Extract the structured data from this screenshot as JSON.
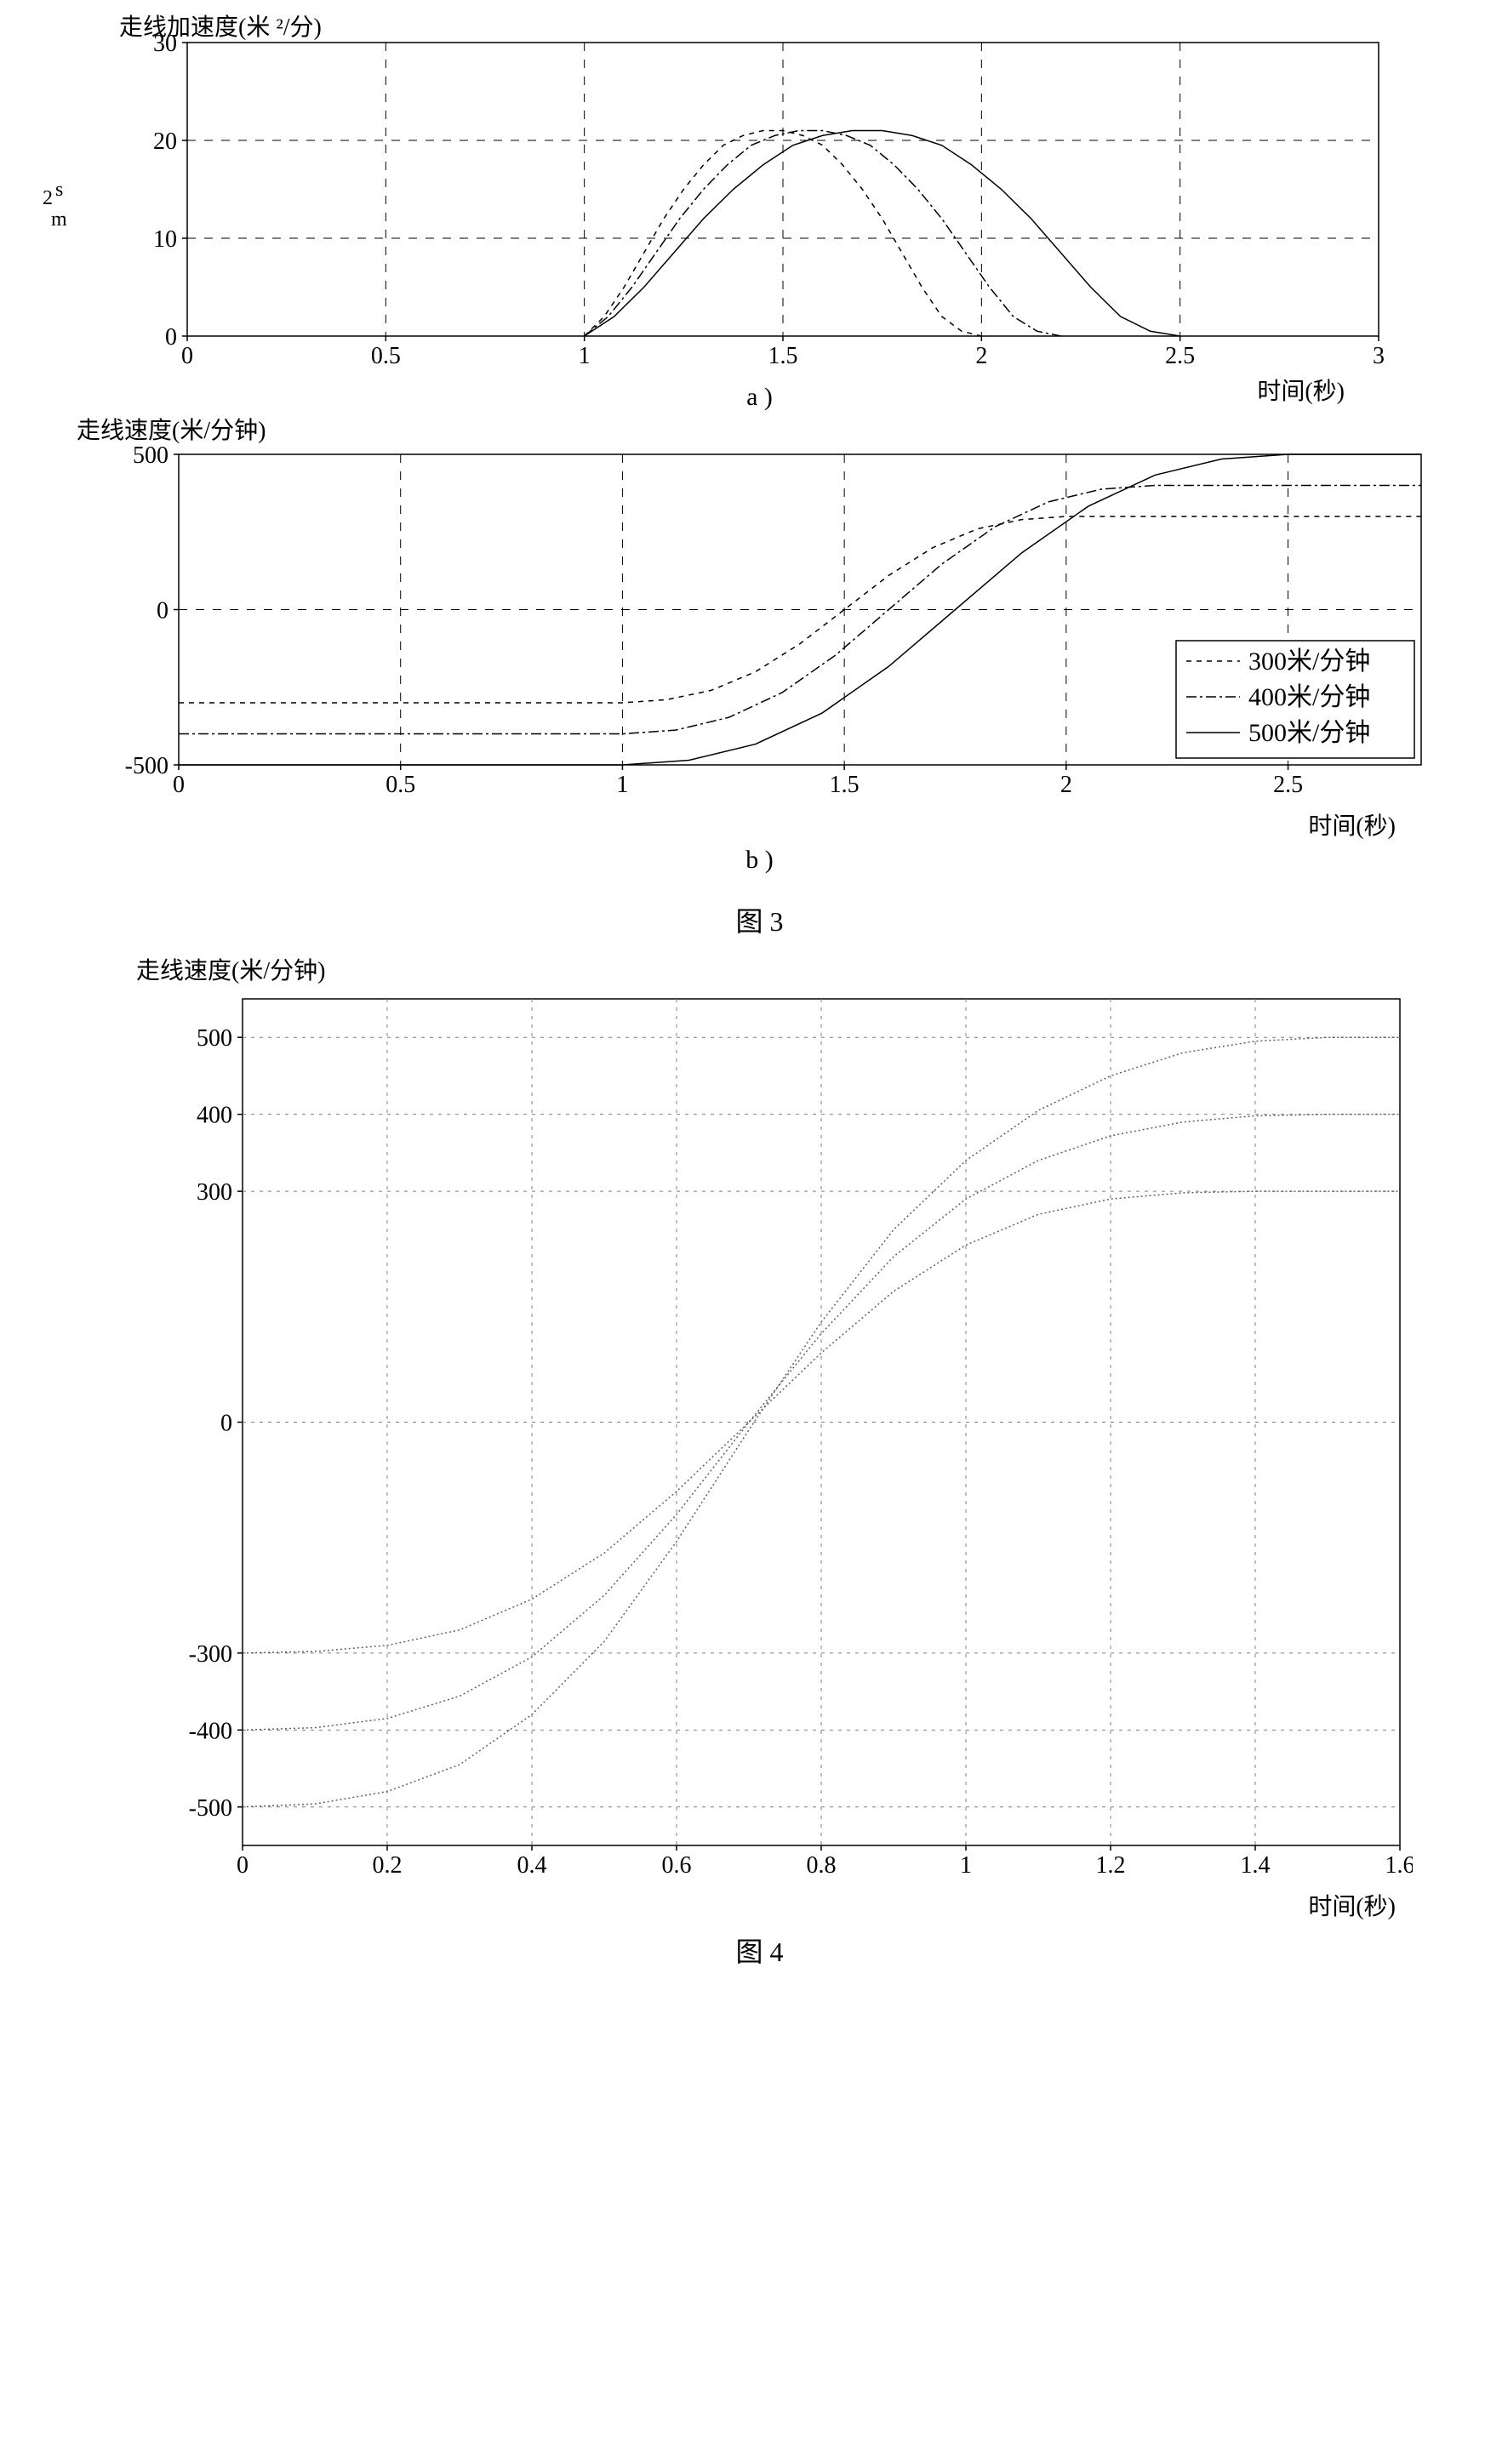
{
  "chart_a": {
    "type": "line",
    "ylabel_top": "走线加速度(米 ²/分)",
    "ylabel_side_top": "s",
    "ylabel_side_num": "2",
    "ylabel_side_bot": "m",
    "xlabel": "时间(秒)",
    "sub_label": "a )",
    "xlim": [
      0,
      3
    ],
    "ylim": [
      0,
      30
    ],
    "xticks": [
      0,
      0.5,
      1,
      1.5,
      2,
      2.5,
      3
    ],
    "yticks": [
      0,
      10,
      20,
      30
    ],
    "grid_color": "#000000",
    "axis_color": "#000000",
    "background_color": "#ffffff",
    "tick_fontsize": 28,
    "series": [
      {
        "name": "300",
        "color": "#000000",
        "dash": "6,6",
        "width": 1.5,
        "x": [
          1.0,
          1.05,
          1.1,
          1.15,
          1.2,
          1.25,
          1.3,
          1.35,
          1.4,
          1.45,
          1.5,
          1.55,
          1.6,
          1.65,
          1.7,
          1.75,
          1.8,
          1.85,
          1.9,
          1.95,
          2.0
        ],
        "y": [
          0,
          2,
          5,
          8.5,
          12,
          15,
          17.5,
          19.5,
          20.5,
          21,
          21,
          20.5,
          19.5,
          17.5,
          15,
          12,
          8.5,
          5,
          2,
          0.5,
          0
        ]
      },
      {
        "name": "400",
        "color": "#000000",
        "dash": "12,4,3,4",
        "width": 1.5,
        "x": [
          1.0,
          1.06,
          1.12,
          1.18,
          1.24,
          1.3,
          1.36,
          1.42,
          1.48,
          1.54,
          1.6,
          1.66,
          1.72,
          1.78,
          1.84,
          1.9,
          1.96,
          2.02,
          2.08,
          2.14,
          2.2
        ],
        "y": [
          0,
          2,
          5,
          8.5,
          12,
          15,
          17.5,
          19.5,
          20.5,
          21,
          21,
          20.5,
          19.5,
          17.5,
          15,
          12,
          8.5,
          5,
          2,
          0.5,
          0
        ]
      },
      {
        "name": "500",
        "color": "#000000",
        "dash": "",
        "width": 1.5,
        "x": [
          1.0,
          1.075,
          1.15,
          1.225,
          1.3,
          1.375,
          1.45,
          1.525,
          1.6,
          1.675,
          1.75,
          1.825,
          1.9,
          1.975,
          2.05,
          2.125,
          2.2,
          2.275,
          2.35,
          2.425,
          2.5
        ],
        "y": [
          0,
          2,
          5,
          8.5,
          12,
          15,
          17.5,
          19.5,
          20.5,
          21,
          21,
          20.5,
          19.5,
          17.5,
          15,
          12,
          8.5,
          5,
          2,
          0.5,
          0
        ]
      }
    ]
  },
  "chart_b": {
    "type": "line",
    "ylabel_top": "走线速度(米/分钟)",
    "xlabel": "时间(秒)",
    "sub_label": "b )",
    "fig_label": "图 3",
    "xlim": [
      0,
      2.8
    ],
    "ylim": [
      -500,
      500
    ],
    "xticks": [
      0,
      0.5,
      1,
      1.5,
      2,
      2.5
    ],
    "yticks": [
      -500,
      0,
      500
    ],
    "grid_color": "#000000",
    "axis_color": "#000000",
    "background_color": "#ffffff",
    "tick_fontsize": 28,
    "legend": {
      "position": "bottom-right",
      "border_color": "#000000",
      "fontsize": 30,
      "items": [
        {
          "label": "300米/分钟",
          "dash": "6,6"
        },
        {
          "label": "400米/分钟",
          "dash": "12,4,3,4"
        },
        {
          "label": "500米/分钟",
          "dash": ""
        }
      ]
    },
    "series": [
      {
        "name": "300",
        "color": "#000000",
        "dash": "6,6",
        "width": 1.5,
        "x": [
          0,
          0.5,
          1.0,
          1.1,
          1.2,
          1.3,
          1.4,
          1.5,
          1.6,
          1.7,
          1.8,
          1.9,
          2.0,
          2.2,
          2.5,
          2.8
        ],
        "y": [
          -300,
          -300,
          -300,
          -290,
          -260,
          -200,
          -110,
          0,
          110,
          200,
          260,
          290,
          300,
          300,
          300,
          300
        ]
      },
      {
        "name": "400",
        "color": "#000000",
        "dash": "12,4,3,4",
        "width": 1.5,
        "x": [
          0,
          0.5,
          1.0,
          1.12,
          1.24,
          1.36,
          1.48,
          1.6,
          1.72,
          1.84,
          1.96,
          2.08,
          2.2,
          2.4,
          2.6,
          2.8
        ],
        "y": [
          -400,
          -400,
          -400,
          -388,
          -347,
          -267,
          -147,
          0,
          147,
          267,
          347,
          388,
          400,
          400,
          400,
          400
        ]
      },
      {
        "name": "500",
        "color": "#000000",
        "dash": "",
        "width": 1.5,
        "x": [
          0,
          0.5,
          1.0,
          1.15,
          1.3,
          1.45,
          1.6,
          1.75,
          1.9,
          2.05,
          2.2,
          2.35,
          2.5,
          2.6,
          2.7,
          2.8
        ],
        "y": [
          -500,
          -500,
          -500,
          -485,
          -433,
          -333,
          -183,
          0,
          183,
          333,
          433,
          485,
          500,
          500,
          500,
          500
        ]
      }
    ]
  },
  "chart_c": {
    "type": "line",
    "ylabel_top": "走线速度(米/分钟)",
    "xlabel": "时间(秒)",
    "fig_label": "图 4",
    "xlim": [
      0,
      1.6
    ],
    "ylim": [
      -550,
      550
    ],
    "xticks": [
      0,
      0.2,
      0.4,
      0.6,
      0.8,
      1,
      1.2,
      1.4,
      1.6
    ],
    "yticks": [
      -500,
      -400,
      -300,
      0,
      300,
      400,
      500
    ],
    "grid_color": "#808080",
    "axis_color": "#000000",
    "background_color": "#ffffff",
    "tick_fontsize": 28,
    "series": [
      {
        "name": "300",
        "color": "#606060",
        "dash": "2,3",
        "width": 1.5,
        "x": [
          0,
          0.1,
          0.2,
          0.3,
          0.4,
          0.5,
          0.6,
          0.7,
          0.8,
          0.9,
          1.0,
          1.1,
          1.2,
          1.3,
          1.4,
          1.5,
          1.6
        ],
        "y": [
          -300,
          -298,
          -290,
          -270,
          -230,
          -170,
          -90,
          0,
          90,
          170,
          230,
          270,
          290,
          298,
          300,
          300,
          300
        ]
      },
      {
        "name": "400",
        "color": "#606060",
        "dash": "2,3",
        "width": 1.5,
        "x": [
          0,
          0.1,
          0.2,
          0.3,
          0.4,
          0.5,
          0.6,
          0.7,
          0.8,
          0.9,
          1.0,
          1.1,
          1.2,
          1.3,
          1.4,
          1.5,
          1.6
        ],
        "y": [
          -400,
          -397,
          -385,
          -356,
          -305,
          -225,
          -120,
          0,
          115,
          215,
          290,
          340,
          372,
          390,
          398,
          400,
          400
        ]
      },
      {
        "name": "500",
        "color": "#606060",
        "dash": "2,3",
        "width": 1.5,
        "x": [
          0,
          0.1,
          0.2,
          0.3,
          0.4,
          0.5,
          0.6,
          0.7,
          0.8,
          0.9,
          1.0,
          1.1,
          1.2,
          1.3,
          1.4,
          1.5,
          1.6
        ],
        "y": [
          -500,
          -496,
          -480,
          -445,
          -380,
          -285,
          -155,
          -10,
          130,
          250,
          340,
          405,
          450,
          480,
          495,
          500,
          500
        ]
      }
    ]
  }
}
